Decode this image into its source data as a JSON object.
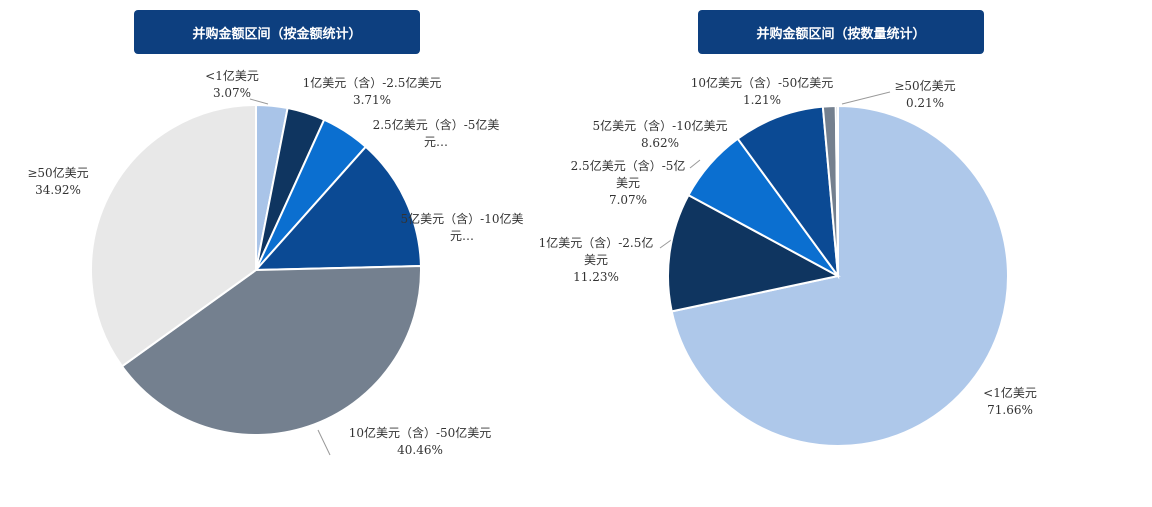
{
  "chart_data": [
    {
      "type": "pie",
      "title": "并购金额区间（按金额统计）",
      "categories": [
        "<1亿美元",
        "1亿美元（含）-2.5亿美元",
        "2.5亿美元（含）-5亿美元…",
        "5亿美元（含）-10亿美元…",
        "10亿美元（含）-50亿美元",
        "≥50亿美元"
      ],
      "values": [
        3.07,
        3.71,
        4.8,
        13.04,
        40.46,
        34.92
      ],
      "value_labels": [
        "3.07%",
        "3.71%",
        null,
        null,
        "40.46%",
        "34.92%"
      ],
      "colors": [
        "#a9c4e8",
        "#0f3560",
        "#0b6fd0",
        "#0b4a94",
        "#74808f",
        "#e8e8e8"
      ]
    },
    {
      "type": "pie",
      "title": "并购金额区间（按数量统计）",
      "categories": [
        "<1亿美元",
        "1亿美元（含）-2.5亿美元",
        "2.5亿美元（含）-5亿美元",
        "5亿美元（含）-10亿美元",
        "10亿美元（含）-50亿美元",
        "≥50亿美元"
      ],
      "values": [
        71.66,
        11.23,
        7.07,
        8.62,
        1.21,
        0.21
      ],
      "value_labels": [
        "71.66%",
        "11.23%",
        "7.07%",
        "8.62%",
        "1.21%",
        "0.21%"
      ],
      "colors": [
        "#aec8ea",
        "#0f3560",
        "#0b6fd0",
        "#0b4a94",
        "#74808f",
        "#8a95a3"
      ]
    }
  ]
}
